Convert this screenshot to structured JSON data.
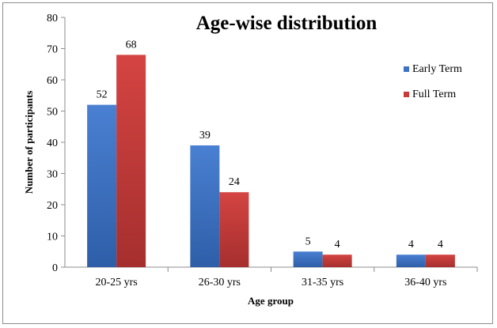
{
  "chart_data": {
    "type": "bar",
    "title": "Age-wise distribution",
    "xlabel": "Age group",
    "ylabel": "Number  of participants",
    "categories": [
      "20-25 yrs",
      "26-30 yrs",
      "31-35 yrs",
      "36-40 yrs"
    ],
    "series": [
      {
        "name": "Early Term",
        "values": [
          52,
          39,
          5,
          4
        ],
        "color": "#3e72c4"
      },
      {
        "name": "Full Term",
        "values": [
          68,
          24,
          4,
          4
        ],
        "color": "#c93b3a"
      }
    ],
    "ylim": [
      0,
      80
    ],
    "yticks": [
      "0",
      "10",
      "20",
      "30",
      "40",
      "50",
      "60",
      "70",
      "80"
    ],
    "grid": false,
    "legend_position": "right",
    "data_labels": true
  }
}
